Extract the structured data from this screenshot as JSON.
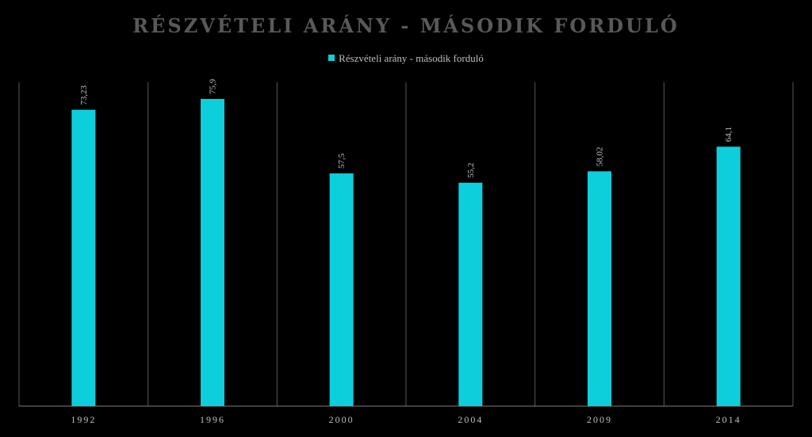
{
  "chart_data": {
    "type": "bar",
    "title": "RÉSZVÉTELI ARÁNY - MÁSODIK FORDULÓ",
    "categories": [
      "1992",
      "1996",
      "2000",
      "2004",
      "2009",
      "2014"
    ],
    "series": [
      {
        "name": "Részvételi arány - második forduló",
        "values": [
          73.23,
          75.9,
          57.5,
          55.2,
          58.02,
          64.1
        ],
        "labels": [
          "73,23",
          "75,9",
          "57,5",
          "55,2",
          "58,02",
          "64,1"
        ],
        "color": "#0dcfdb"
      }
    ],
    "ylim": [
      0,
      80
    ],
    "legend_position": "top",
    "grid": false,
    "category_separators": true
  }
}
